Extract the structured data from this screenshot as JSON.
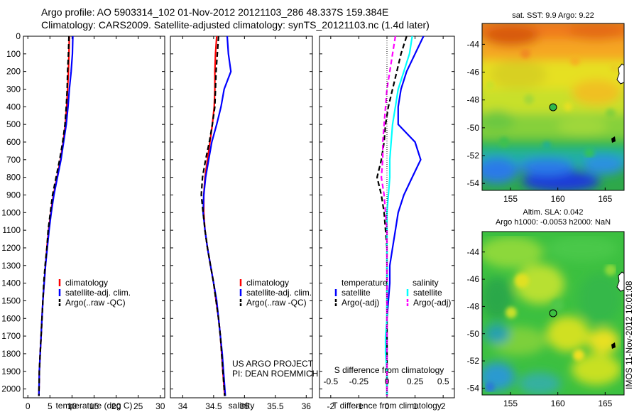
{
  "header": {
    "line1": "Argo profile: AO 5903314_102 01-Nov-2012 20121103_286 48.337S 159.384E",
    "line2": "Climatology: CARS2009. Satellite-adjusted climatology: synTS_20121103.nc (1.4d later)"
  },
  "colors": {
    "climatology": "#ff0000",
    "satellite": "#0000ff",
    "argo": "#000000",
    "salinity_satellite": "#00ffff",
    "salinity_argo": "#ff00ff"
  },
  "chart_data": [
    {
      "type": "line",
      "panel": "temperature",
      "xlabel": "temperature (deg C)",
      "xlim": [
        -1,
        31
      ],
      "xticks": [
        0,
        5,
        10,
        15,
        20,
        25,
        30
      ],
      "ylim": [
        0,
        2050
      ],
      "yticks": [
        0,
        100,
        200,
        300,
        400,
        500,
        600,
        700,
        800,
        900,
        1000,
        1100,
        1200,
        1300,
        1400,
        1500,
        1600,
        1700,
        1800,
        1900,
        2000
      ],
      "legend": [
        "climatology",
        "satellite-adj. clim.",
        "Argo(..raw -QC)"
      ],
      "series": [
        {
          "name": "climatology",
          "style": "solid",
          "color": "#ff0000",
          "x": [
            9.4,
            9.3,
            9.2,
            9.0,
            8.8,
            8.5,
            8.0,
            7.4,
            6.6,
            5.8,
            5.2,
            4.7,
            4.3,
            4.0,
            3.7,
            3.4,
            3.2,
            3.0,
            2.8,
            2.6,
            2.5
          ],
          "y": [
            0,
            100,
            200,
            300,
            400,
            500,
            600,
            700,
            800,
            900,
            1000,
            1100,
            1200,
            1300,
            1400,
            1500,
            1600,
            1700,
            1800,
            1900,
            2040
          ]
        },
        {
          "name": "satellite-adj. clim.",
          "style": "solid",
          "color": "#0000ff",
          "x": [
            10.2,
            10.1,
            9.8,
            9.4,
            9.1,
            8.7,
            8.1,
            7.5,
            6.7,
            5.9,
            5.3,
            4.8,
            4.4,
            4.0,
            3.7,
            3.4,
            3.2,
            3.0,
            2.8,
            2.6,
            2.5
          ],
          "y": [
            0,
            100,
            200,
            300,
            400,
            500,
            600,
            700,
            800,
            900,
            1000,
            1100,
            1200,
            1300,
            1400,
            1500,
            1600,
            1700,
            1800,
            1900,
            2040
          ]
        },
        {
          "name": "Argo(..raw -QC)",
          "style": "dashed",
          "color": "#000000",
          "x": [
            9.3,
            9.2,
            9.0,
            8.9,
            8.7,
            8.4,
            7.9,
            7.2,
            6.4,
            5.6,
            5.1,
            4.6,
            4.3,
            3.9,
            3.6,
            3.4,
            3.2,
            3.0,
            2.8,
            2.6,
            2.5
          ],
          "y": [
            0,
            100,
            200,
            300,
            400,
            500,
            600,
            700,
            800,
            900,
            1000,
            1100,
            1200,
            1300,
            1400,
            1500,
            1600,
            1700,
            1800,
            1900,
            2040
          ]
        }
      ]
    },
    {
      "type": "line",
      "panel": "salinity",
      "xlabel": "salinity",
      "xlim": [
        33.8,
        36.1
      ],
      "xticks": [
        34,
        34.5,
        35,
        35.5,
        36
      ],
      "xticklabels": [
        "34",
        "34.5",
        "35",
        "35.5",
        "36"
      ],
      "ylim": [
        0,
        2050
      ],
      "legend": [
        "climatology",
        "satellite-adj. clim.",
        "Argo(..raw -QC)"
      ],
      "annotation": [
        "US ARGO PROJECT",
        "PI: DEAN ROEMMICH"
      ],
      "series": [
        {
          "name": "climatology",
          "style": "solid",
          "color": "#ff0000",
          "x": [
            34.55,
            34.53,
            34.52,
            34.52,
            34.51,
            34.48,
            34.44,
            34.4,
            34.36,
            34.34,
            34.34,
            34.36,
            34.4,
            34.45,
            34.5,
            34.54,
            34.58,
            34.61,
            34.63,
            34.65,
            34.68
          ],
          "y": [
            0,
            100,
            200,
            300,
            400,
            500,
            600,
            700,
            800,
            900,
            1000,
            1100,
            1200,
            1300,
            1400,
            1500,
            1600,
            1700,
            1800,
            1900,
            2040
          ]
        },
        {
          "name": "satellite-adj. clim.",
          "style": "solid",
          "color": "#0000ff",
          "x": [
            34.72,
            34.74,
            34.78,
            34.67,
            34.62,
            34.55,
            34.47,
            34.42,
            34.37,
            34.34,
            34.33,
            34.36,
            34.4,
            34.45,
            34.5,
            34.55,
            34.58,
            34.61,
            34.64,
            34.66,
            34.69
          ],
          "y": [
            0,
            100,
            200,
            300,
            400,
            500,
            600,
            700,
            800,
            900,
            1000,
            1100,
            1200,
            1300,
            1400,
            1500,
            1600,
            1700,
            1800,
            1900,
            2040
          ]
        },
        {
          "name": "Argo(..raw -QC)",
          "style": "dashed",
          "color": "#000000",
          "x": [
            34.58,
            34.56,
            34.54,
            34.53,
            34.52,
            34.48,
            34.43,
            34.37,
            34.32,
            34.3,
            34.33,
            34.36,
            34.4,
            34.45,
            34.5,
            34.54,
            34.58,
            34.61,
            34.63,
            34.65,
            34.68
          ],
          "y": [
            0,
            100,
            200,
            300,
            400,
            500,
            600,
            700,
            800,
            900,
            1000,
            1100,
            1200,
            1300,
            1400,
            1500,
            1600,
            1700,
            1800,
            1900,
            2040
          ]
        }
      ]
    },
    {
      "type": "line",
      "panel": "difference",
      "xlabel": "T difference from climatology",
      "xlim": [
        -2.4,
        2.4
      ],
      "xticks": [
        -2,
        -1,
        0,
        1,
        2
      ],
      "xticklabels": [
        "-2",
        "-1",
        "0",
        "1",
        "2"
      ],
      "x2label": "S difference from climatology",
      "x2ticklabels": [
        "-0.5",
        "-0.25",
        "0",
        "0.25",
        "0.5"
      ],
      "ylim": [
        0,
        2050
      ],
      "legend_temperature": {
        "title": "temperature",
        "items": [
          "satellite",
          "Argo(-adj)"
        ]
      },
      "legend_salinity": {
        "title": "salinity",
        "items": [
          "satellite",
          "Argo(-adj)"
        ]
      },
      "series": [
        {
          "name": "temperature satellite",
          "style": "solid",
          "color": "#0000ff",
          "x": [
            1.3,
            1.0,
            0.7,
            0.5,
            0.4,
            0.4,
            1.0,
            1.2,
            0.9,
            0.6,
            0.4,
            0.3,
            0.2,
            0.1,
            0.1,
            0.05,
            0.0,
            0.0,
            0.0,
            0.0,
            0.0
          ],
          "y": [
            0,
            100,
            200,
            300,
            400,
            500,
            600,
            700,
            800,
            900,
            1000,
            1100,
            1200,
            1300,
            1400,
            1500,
            1600,
            1700,
            1800,
            1900,
            2040
          ]
        },
        {
          "name": "temperature Argo(-adj)",
          "style": "dashed",
          "color": "#000000",
          "x": [
            0.7,
            0.5,
            0.35,
            0.2,
            0.05,
            -0.05,
            -0.1,
            -0.2,
            -0.35,
            -0.2,
            -0.1,
            -0.05,
            0.0,
            0.0,
            0.0,
            0.0,
            0.0,
            0.0,
            0.0,
            0.0,
            0.0
          ],
          "y": [
            0,
            100,
            200,
            300,
            400,
            500,
            600,
            700,
            800,
            900,
            1000,
            1100,
            1200,
            1300,
            1400,
            1500,
            1600,
            1700,
            1800,
            1900,
            2040
          ]
        },
        {
          "name": "salinity satellite",
          "style": "solid",
          "color": "#00ffff",
          "x": [
            0.9,
            0.8,
            0.6,
            0.4,
            0.3,
            0.2,
            0.15,
            0.1,
            0.1,
            0.05,
            0.0,
            0.0,
            0.0,
            0.0,
            0.0,
            0.0,
            0.0,
            -0.05,
            -0.05,
            0.0,
            0.0
          ],
          "y": [
            0,
            100,
            200,
            300,
            400,
            500,
            600,
            700,
            800,
            900,
            1000,
            1100,
            1200,
            1300,
            1400,
            1500,
            1600,
            1700,
            1800,
            1900,
            2040
          ]
        },
        {
          "name": "salinity Argo(-adj)",
          "style": "dashed",
          "color": "#ff00ff",
          "x": [
            0.3,
            0.2,
            0.1,
            0.0,
            -0.05,
            -0.1,
            -0.15,
            -0.15,
            -0.2,
            -0.1,
            -0.05,
            0.0,
            0.0,
            0.0,
            0.0,
            0.0,
            0.0,
            0.0,
            0.0,
            0.0,
            0.0
          ],
          "y": [
            0,
            100,
            200,
            300,
            400,
            500,
            600,
            700,
            800,
            900,
            1000,
            1100,
            1200,
            1300,
            1400,
            1500,
            1600,
            1700,
            1800,
            1900,
            2040
          ]
        }
      ]
    },
    {
      "type": "heatmap",
      "panel": "map-sst",
      "title": "sat. SST: 9.9 Argo: 9.22",
      "xticks": [
        155,
        160,
        165
      ],
      "yticks": [
        -44,
        -46,
        -48,
        -50,
        -52,
        -54
      ],
      "xlim": [
        152,
        167
      ],
      "ylim": [
        -54.5,
        -42.5
      ],
      "marker": {
        "lon": 159.384,
        "lat": -48.337
      }
    },
    {
      "type": "heatmap",
      "panel": "map-sla",
      "title_lines": [
        "Altim. SLA: 0.042",
        "Argo h1000: -0.0053 h2000: NaN"
      ],
      "xticks": [
        155,
        160,
        165
      ],
      "yticks": [
        -44,
        -46,
        -48,
        -50,
        -52,
        -54
      ],
      "xlim": [
        152,
        167
      ],
      "ylim": [
        -54.5,
        -42.5
      ],
      "marker": {
        "lon": 159.384,
        "lat": -48.337
      }
    }
  ],
  "side_label": "IMOS 11-Nov-2012 10:01:08"
}
